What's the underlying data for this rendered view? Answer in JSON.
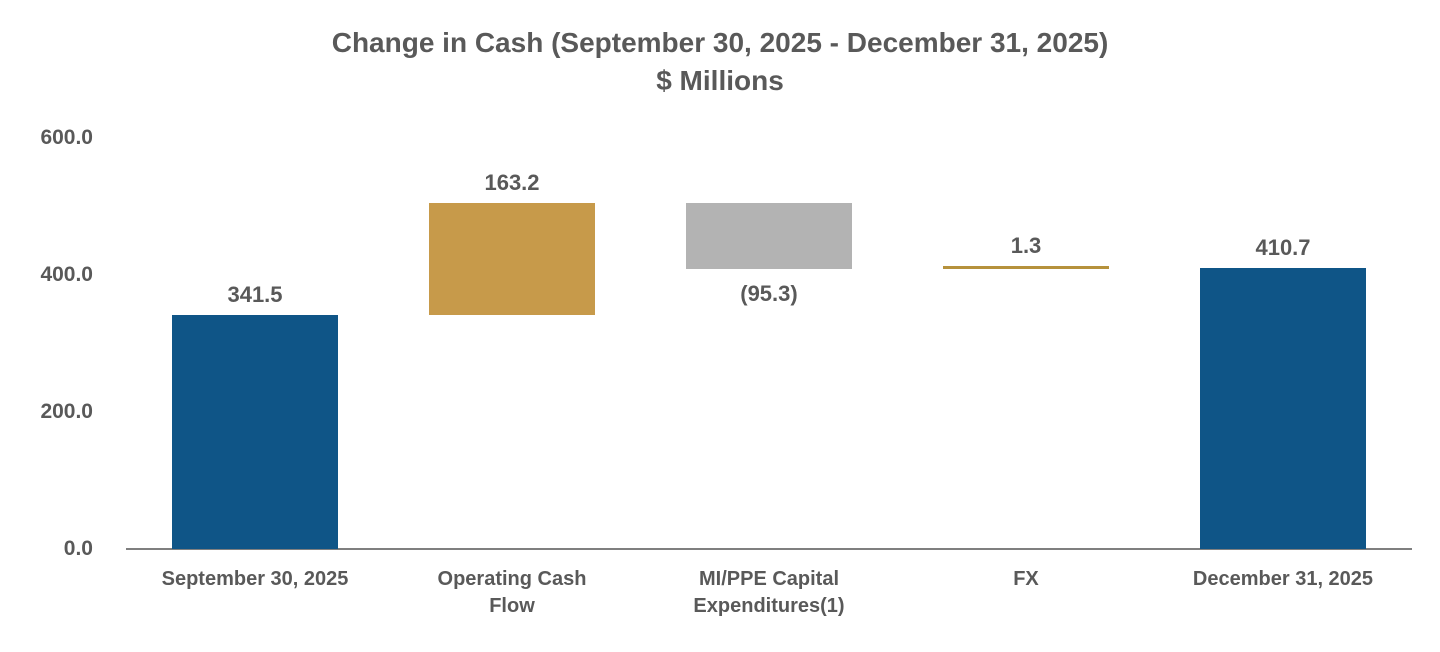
{
  "page": {
    "background": "#FFFFFF"
  },
  "chart_data": {
    "type": "waterfall",
    "title": "Change in Cash (September 30, 2025 - December 31, 2025)",
    "subtitle": "$ Millions",
    "ylim": [
      0,
      600
    ],
    "yticks": [
      {
        "value": 0,
        "label": "0.0"
      },
      {
        "value": 200,
        "label": "200.0"
      },
      {
        "value": 400,
        "label": "400.0"
      },
      {
        "value": 600,
        "label": "600.0"
      }
    ],
    "grid": false,
    "legend": false,
    "colors": {
      "total_bar": "#0F5587",
      "increase_bar": "#C79A4A",
      "decrease_bar": "#B3B3B3",
      "fx_line": "#B6923C",
      "axis_line": "#7F7F7F",
      "text": "#595959"
    },
    "bars": [
      {
        "category": "September 30, 2025",
        "label_lines": [
          "September 30, 2025"
        ],
        "value": 341.5,
        "display": "341.5",
        "start": 0,
        "end": 341.5,
        "style": "total",
        "label_position": "above"
      },
      {
        "category": "Operating Cash Flow",
        "label_lines": [
          "Operating Cash",
          "Flow"
        ],
        "value": 163.2,
        "display": "163.2",
        "start": 341.5,
        "end": 504.7,
        "style": "increase",
        "label_position": "above"
      },
      {
        "category": "MI/PPE Capital Expenditures(1)",
        "label_lines": [
          "MI/PPE Capital",
          "Expenditures(1)"
        ],
        "value": -95.3,
        "display": "(95.3)",
        "start": 504.7,
        "end": 409.4,
        "style": "decrease",
        "label_position": "below"
      },
      {
        "category": "FX",
        "label_lines": [
          "FX"
        ],
        "value": 1.3,
        "display": "1.3",
        "start": 409.4,
        "end": 410.7,
        "style": "thin-line",
        "label_position": "above"
      },
      {
        "category": "December 31, 2025",
        "label_lines": [
          "December 31, 2025"
        ],
        "value": 410.7,
        "display": "410.7",
        "start": 0,
        "end": 410.7,
        "style": "total",
        "label_position": "above"
      }
    ]
  }
}
